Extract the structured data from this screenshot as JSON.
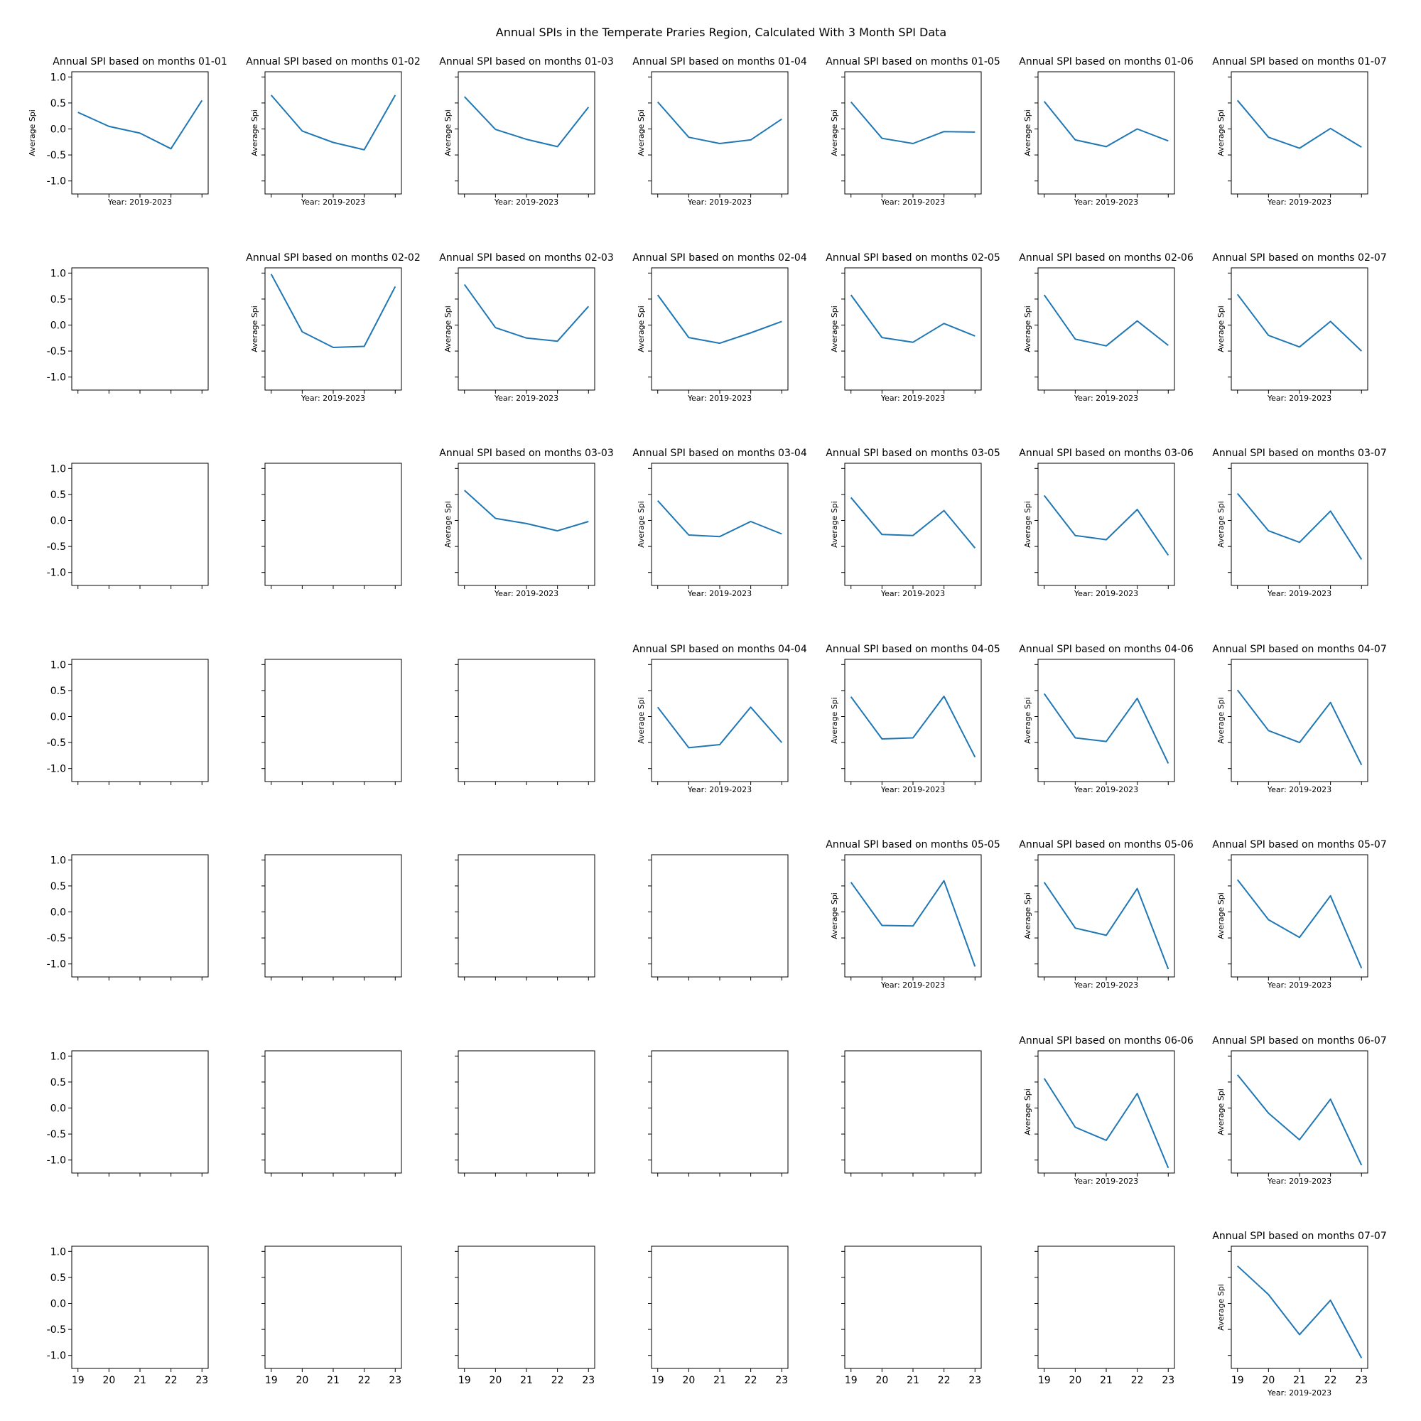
{
  "figure": {
    "suptitle": "Annual SPIs in the Temperate Praries Region, Calculated With 3 Month SPI Data",
    "subplot_title_prefix": "Annual SPI based on months ",
    "xlabel": "Year: 2019-2023",
    "ylabel": "Average Spi",
    "line_color": "#1f77b4"
  },
  "chart_data": {
    "type": "line",
    "layout": "7x7 grid of subplots; upper-triangular panels (start month row, end month column) contain data, lower-triangular panels are empty axes",
    "x_ticks": [
      "19",
      "20",
      "21",
      "22",
      "23"
    ],
    "x": [
      19,
      20,
      21,
      22,
      23
    ],
    "ylim": [
      -1.25,
      1.1
    ],
    "y_ticks": [
      "1.0",
      "0.5",
      "0.0",
      "-0.5",
      "-1.0"
    ],
    "y_tick_values": [
      1.0,
      0.5,
      0.0,
      -0.5,
      -1.0
    ],
    "grid": false,
    "series": [
      {
        "months": "01-01",
        "row": 1,
        "col": 1,
        "values": [
          0.32,
          0.05,
          -0.08,
          -0.38,
          0.55
        ]
      },
      {
        "months": "01-02",
        "row": 1,
        "col": 2,
        "values": [
          0.65,
          -0.04,
          -0.26,
          -0.4,
          0.65
        ]
      },
      {
        "months": "01-03",
        "row": 1,
        "col": 3,
        "values": [
          0.62,
          -0.01,
          -0.2,
          -0.34,
          0.42
        ]
      },
      {
        "months": "01-04",
        "row": 1,
        "col": 4,
        "values": [
          0.52,
          -0.16,
          -0.28,
          -0.21,
          0.19
        ]
      },
      {
        "months": "01-05",
        "row": 1,
        "col": 5,
        "values": [
          0.52,
          -0.18,
          -0.28,
          -0.05,
          -0.06
        ]
      },
      {
        "months": "01-06",
        "row": 1,
        "col": 6,
        "values": [
          0.53,
          -0.21,
          -0.34,
          0.0,
          -0.23
        ]
      },
      {
        "months": "01-07",
        "row": 1,
        "col": 7,
        "values": [
          0.55,
          -0.16,
          -0.37,
          0.01,
          -0.35
        ]
      },
      {
        "months": "02-02",
        "row": 2,
        "col": 2,
        "values": [
          0.98,
          -0.13,
          -0.43,
          -0.41,
          0.74
        ]
      },
      {
        "months": "02-03",
        "row": 2,
        "col": 3,
        "values": [
          0.78,
          -0.05,
          -0.25,
          -0.31,
          0.36
        ]
      },
      {
        "months": "02-04",
        "row": 2,
        "col": 4,
        "values": [
          0.58,
          -0.24,
          -0.35,
          -0.15,
          0.07
        ]
      },
      {
        "months": "02-05",
        "row": 2,
        "col": 5,
        "values": [
          0.58,
          -0.24,
          -0.33,
          0.03,
          -0.21
        ]
      },
      {
        "months": "02-06",
        "row": 2,
        "col": 6,
        "values": [
          0.58,
          -0.27,
          -0.4,
          0.08,
          -0.39
        ]
      },
      {
        "months": "02-07",
        "row": 2,
        "col": 7,
        "values": [
          0.59,
          -0.2,
          -0.42,
          0.07,
          -0.5
        ]
      },
      {
        "months": "03-03",
        "row": 3,
        "col": 3,
        "values": [
          0.58,
          0.04,
          -0.06,
          -0.2,
          -0.02
        ]
      },
      {
        "months": "03-04",
        "row": 3,
        "col": 4,
        "values": [
          0.38,
          -0.28,
          -0.31,
          -0.02,
          -0.26
        ]
      },
      {
        "months": "03-05",
        "row": 3,
        "col": 5,
        "values": [
          0.44,
          -0.27,
          -0.29,
          0.19,
          -0.53
        ]
      },
      {
        "months": "03-06",
        "row": 3,
        "col": 6,
        "values": [
          0.48,
          -0.29,
          -0.37,
          0.21,
          -0.67
        ]
      },
      {
        "months": "03-07",
        "row": 3,
        "col": 7,
        "values": [
          0.52,
          -0.2,
          -0.42,
          0.18,
          -0.75
        ]
      },
      {
        "months": "04-04",
        "row": 4,
        "col": 4,
        "values": [
          0.18,
          -0.6,
          -0.54,
          0.18,
          -0.5
        ]
      },
      {
        "months": "04-05",
        "row": 4,
        "col": 5,
        "values": [
          0.38,
          -0.43,
          -0.41,
          0.39,
          -0.78
        ]
      },
      {
        "months": "04-06",
        "row": 4,
        "col": 6,
        "values": [
          0.44,
          -0.41,
          -0.48,
          0.35,
          -0.9
        ]
      },
      {
        "months": "04-07",
        "row": 4,
        "col": 7,
        "values": [
          0.51,
          -0.27,
          -0.5,
          0.27,
          -0.93
        ]
      },
      {
        "months": "05-05",
        "row": 5,
        "col": 5,
        "values": [
          0.57,
          -0.26,
          -0.27,
          0.6,
          -1.05
        ]
      },
      {
        "months": "05-06",
        "row": 5,
        "col": 6,
        "values": [
          0.57,
          -0.31,
          -0.45,
          0.45,
          -1.1
        ]
      },
      {
        "months": "05-07",
        "row": 5,
        "col": 7,
        "values": [
          0.62,
          -0.15,
          -0.49,
          0.31,
          -1.08
        ]
      },
      {
        "months": "06-06",
        "row": 6,
        "col": 6,
        "values": [
          0.57,
          -0.37,
          -0.62,
          0.28,
          -1.15
        ]
      },
      {
        "months": "06-07",
        "row": 6,
        "col": 7,
        "values": [
          0.64,
          -0.1,
          -0.61,
          0.17,
          -1.1
        ]
      },
      {
        "months": "07-07",
        "row": 7,
        "col": 7,
        "values": [
          0.72,
          0.17,
          -0.6,
          0.06,
          -1.05
        ]
      }
    ]
  }
}
